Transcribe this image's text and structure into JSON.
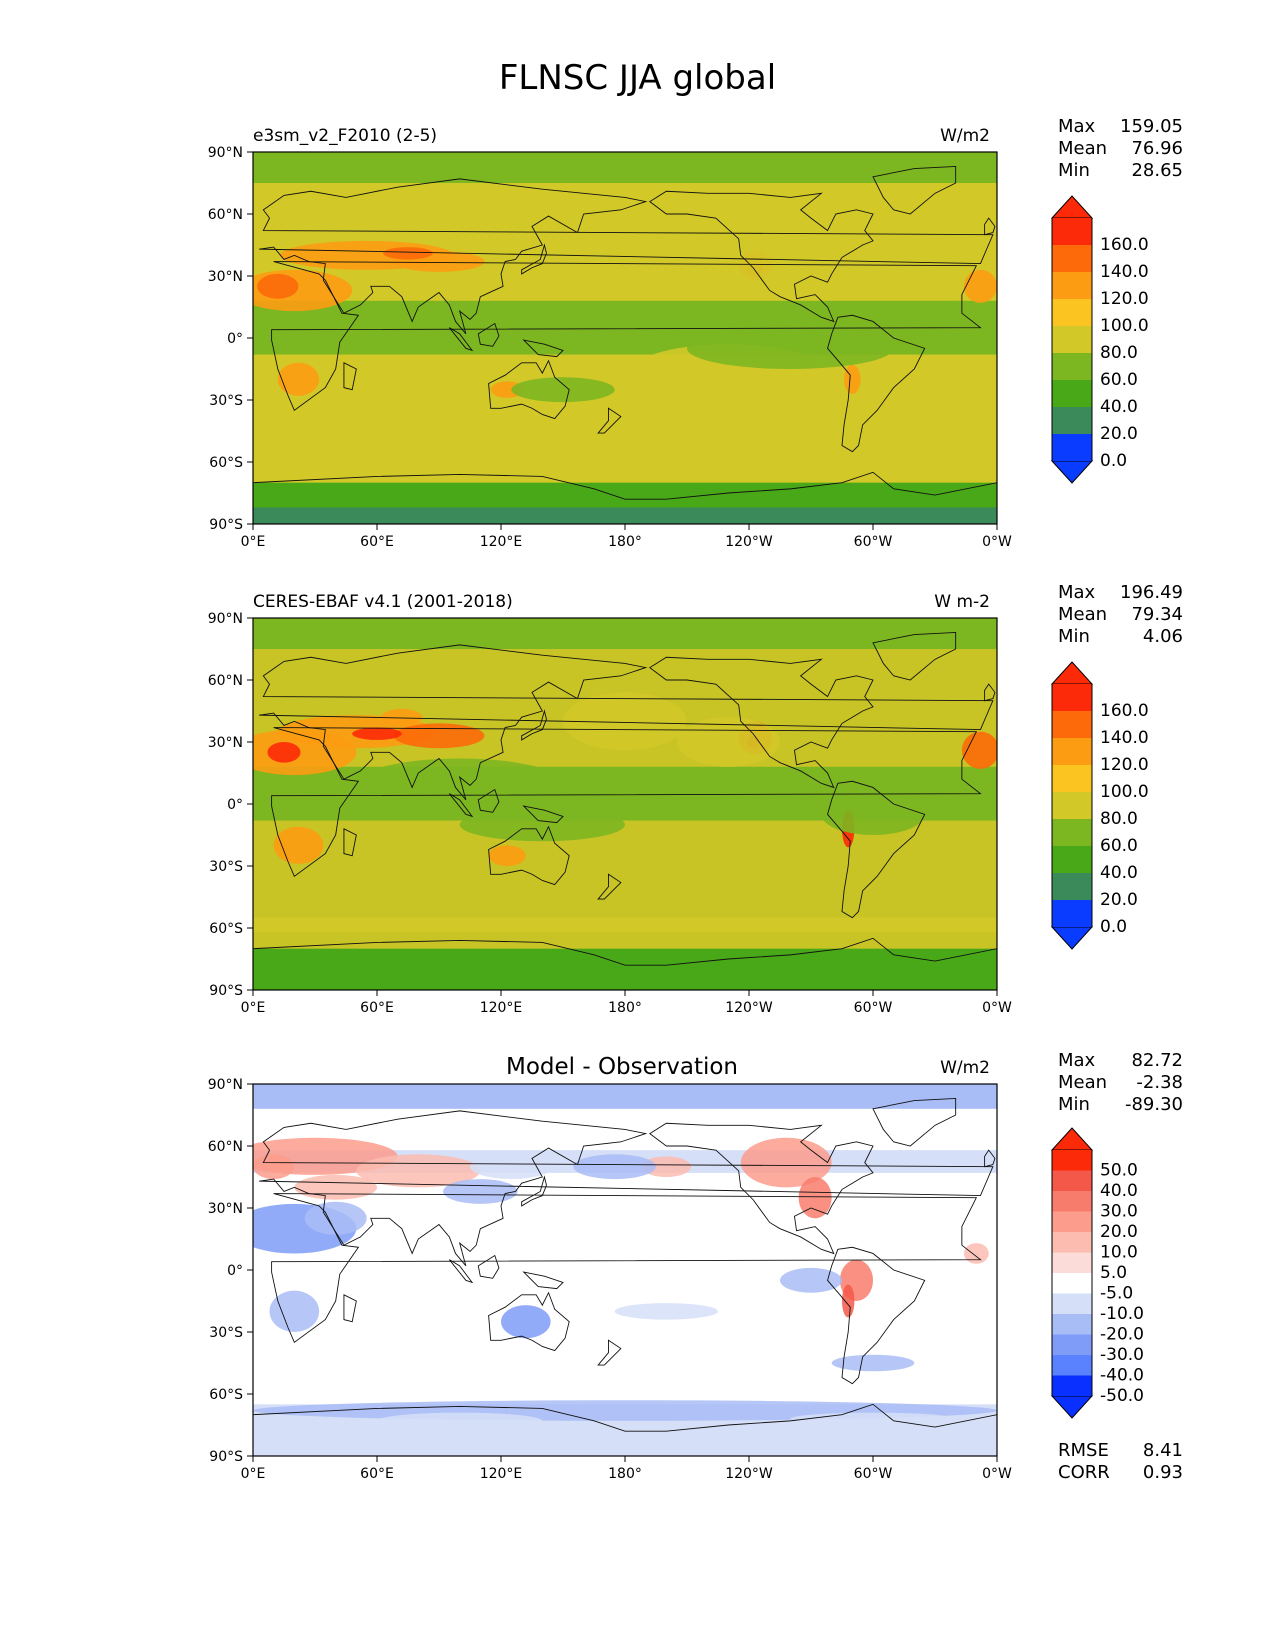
{
  "figure": {
    "title": "FLNSC JJA global"
  },
  "map_axes": {
    "lat_ticks": [
      "90°N",
      "60°N",
      "30°N",
      "0°",
      "30°S",
      "60°S",
      "90°S"
    ],
    "lon_ticks": [
      "0°E",
      "60°E",
      "120°E",
      "180°",
      "120°W",
      "60°W",
      "0°W"
    ]
  },
  "colors": {
    "levels_main": [
      "#0a3cff",
      "#0a6aa6",
      "#3a8a5a",
      "#48a818",
      "#7cb620",
      "#d2c828",
      "#fcc420",
      "#fc9c12",
      "#fc6a0a",
      "#fc2a08"
    ],
    "levels_diff": [
      "#0a30ff",
      "#3c64ff",
      "#5a82ff",
      "#7f9cf8",
      "#a8bcf6",
      "#d6dff8",
      "#ffffff",
      "#fcdcd8",
      "#fcbcb0",
      "#fc9c8c",
      "#f87c6c",
      "#f45848",
      "#fc2a08"
    ],
    "ocean_main": "#d2c828",
    "land_main": "#7cb620",
    "ocean_obs": "#c8c425"
  },
  "panels": [
    {
      "subtitle": "e3sm_v2_F2010 (2-5)",
      "units": "W/m2",
      "stats": [
        {
          "label": "Max",
          "value": "159.05"
        },
        {
          "label": "Mean",
          "value": "76.96"
        },
        {
          "label": "Min",
          "value": "28.65"
        }
      ],
      "colorbar_ticks": [
        "160.0",
        "140.0",
        "120.0",
        "100.0",
        "80.0",
        "60.0",
        "40.0",
        "20.0",
        "0.0"
      ]
    },
    {
      "subtitle": "CERES-EBAF v4.1 (2001-2018)",
      "units": "W m-2",
      "stats": [
        {
          "label": "Max",
          "value": "196.49"
        },
        {
          "label": "Mean",
          "value": "79.34"
        },
        {
          "label": "Min",
          "value": "4.06"
        }
      ],
      "colorbar_ticks": [
        "160.0",
        "140.0",
        "120.0",
        "100.0",
        "80.0",
        "60.0",
        "40.0",
        "20.0",
        "0.0"
      ]
    },
    {
      "subtitle": "",
      "center_title": "Model - Observation",
      "units": "W/m2",
      "stats": [
        {
          "label": "Max",
          "value": "82.72"
        },
        {
          "label": "Mean",
          "value": "-2.38"
        },
        {
          "label": "Min",
          "value": "-89.30"
        }
      ],
      "colorbar_ticks": [
        "50.0",
        "40.0",
        "30.0",
        "20.0",
        "10.0",
        "5.0",
        "-5.0",
        "-10.0",
        "-20.0",
        "-30.0",
        "-40.0",
        "-50.0"
      ],
      "metrics": [
        {
          "label": "RMSE",
          "value": "8.41"
        },
        {
          "label": "CORR",
          "value": "0.93"
        }
      ]
    }
  ]
}
